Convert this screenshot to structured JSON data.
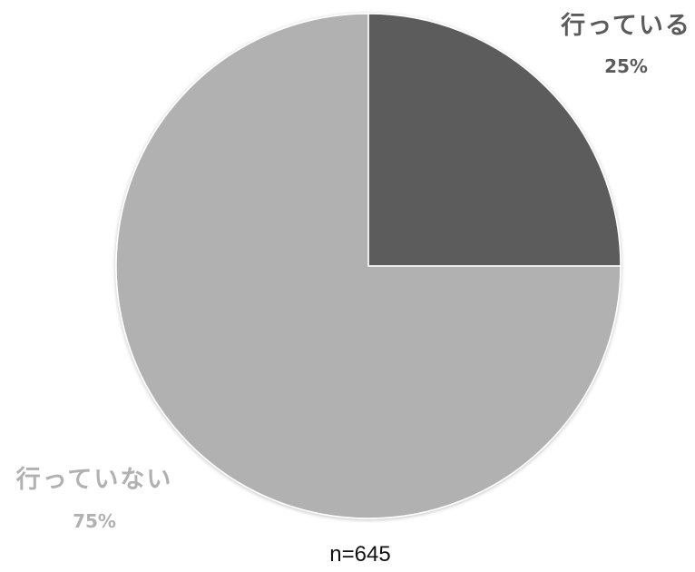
{
  "chart_data": {
    "type": "pie",
    "slices": [
      {
        "label": "行っている",
        "value": 25,
        "display": "25%",
        "color": "#5b5b5b",
        "label_color": "#5b5b5b"
      },
      {
        "label": "行っていない",
        "value": 75,
        "display": "75%",
        "color": "#b1b1b1",
        "label_color": "#b1b1b1"
      }
    ],
    "start_angle_deg": 0,
    "direction": "clockwise",
    "note": "n=645",
    "legend": "none"
  }
}
